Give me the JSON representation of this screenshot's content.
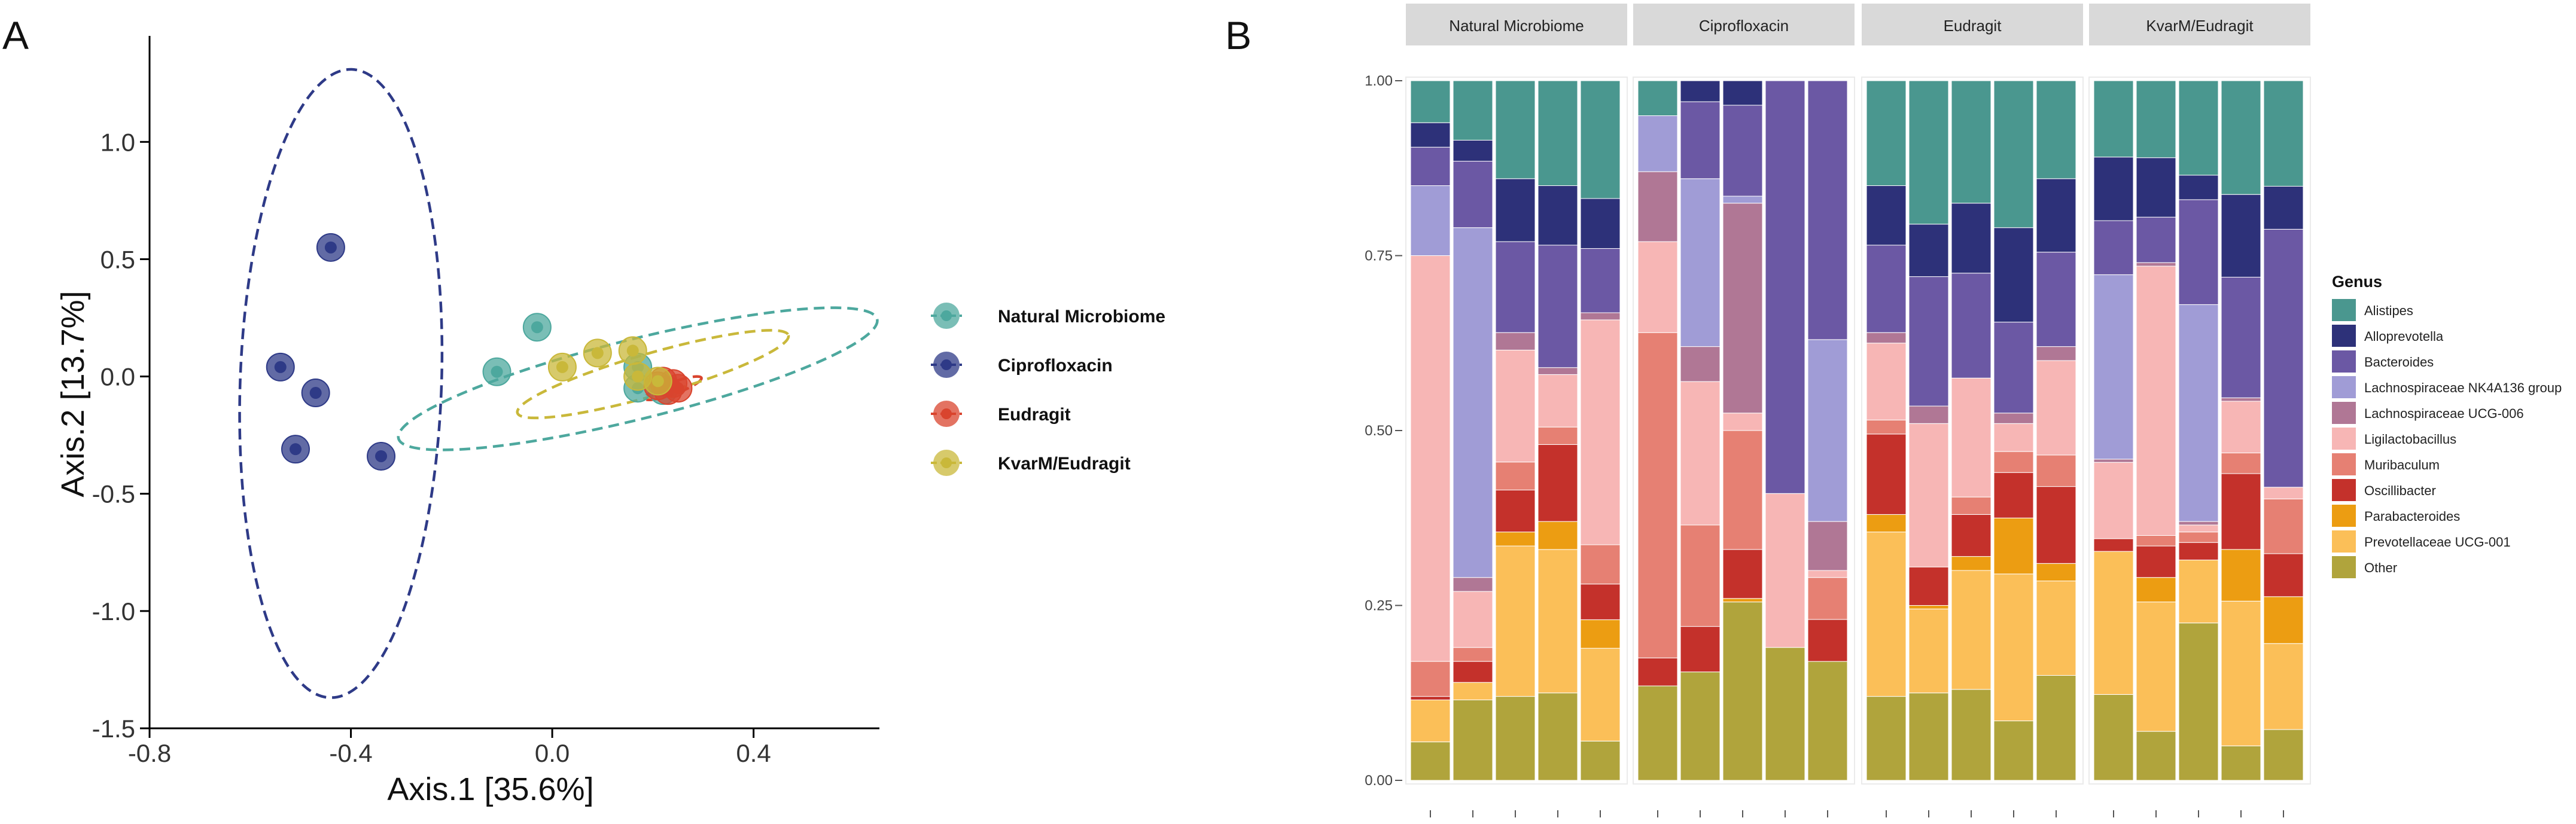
{
  "panel_letters": {
    "a": "A",
    "b": "B"
  },
  "chart_data": [
    {
      "type": "scatter",
      "panel": "A",
      "title": "",
      "xlabel": "Axis.1   [35.6%]",
      "ylabel": "Axis.2   [13.7%]",
      "xlim": [
        -0.8,
        0.65
      ],
      "ylim": [
        -1.5,
        1.35
      ],
      "x_ticks": [
        -0.8,
        -0.4,
        0,
        0.4
      ],
      "x_tick_labels": [
        "-0.8",
        "-0.4",
        "0.0",
        "0.4"
      ],
      "y_ticks": [
        1.0,
        0.5,
        0.0,
        -0.5,
        -1.0,
        -1.5
      ],
      "y_tick_labels": [
        "1.0",
        "0.5",
        "0.0",
        "-0.5",
        "-1.0",
        "-1.5"
      ],
      "grid": false,
      "legend_position": "right",
      "series": [
        {
          "name": "Natural Microbiome",
          "color": "#4da89e",
          "points": [
            [
              -0.11,
              0.02
            ],
            [
              -0.03,
              0.21
            ],
            [
              0.17,
              0.04
            ],
            [
              0.17,
              -0.05
            ],
            [
              0.22,
              -0.06
            ]
          ],
          "ellipse": {
            "cx": 0.17,
            "cy": -0.01,
            "rx": 0.49,
            "ry": 0.17,
            "angle_deg": -14
          }
        },
        {
          "name": "Ciprofloxacin",
          "color": "#2e3a87",
          "points": [
            [
              -0.44,
              0.55
            ],
            [
              -0.54,
              0.04
            ],
            [
              -0.47,
              -0.07
            ],
            [
              -0.51,
              -0.31
            ],
            [
              -0.34,
              -0.34
            ]
          ],
          "ellipse": {
            "cx": -0.42,
            "cy": -0.03,
            "rx": 0.2,
            "ry": 1.34,
            "angle_deg": 2
          }
        },
        {
          "name": "Eudragit",
          "color": "#d9442e",
          "points": [
            [
              0.22,
              -0.02
            ],
            [
              0.24,
              -0.03
            ],
            [
              0.25,
              -0.05
            ],
            [
              0.21,
              -0.04
            ],
            [
              0.23,
              -0.06
            ]
          ],
          "ellipse": {
            "cx": 0.24,
            "cy": -0.05,
            "rx": 0.06,
            "ry": 0.025,
            "angle_deg": -20
          }
        },
        {
          "name": "KvarM/Eudragit",
          "color": "#c9b83a",
          "points": [
            [
              0.02,
              0.04
            ],
            [
              0.09,
              0.1
            ],
            [
              0.16,
              0.11
            ],
            [
              0.17,
              0.0
            ],
            [
              0.21,
              -0.02
            ]
          ],
          "ellipse": {
            "cx": 0.2,
            "cy": 0.01,
            "rx": 0.28,
            "ry": 0.09,
            "angle_deg": -16
          }
        }
      ]
    },
    {
      "type": "bar",
      "stacked": true,
      "panel": "B",
      "title": "",
      "xlabel": "",
      "ylabel": "",
      "ylim": [
        0,
        1
      ],
      "y_ticks": [
        0,
        0.25,
        0.5,
        0.75,
        1.0
      ],
      "y_tick_labels": [
        "0.00",
        "0.25",
        "0.50",
        "0.75",
        "1.00"
      ],
      "legend_title": "Genus",
      "legend_position": "right",
      "genera": [
        "Alistipes",
        "Alloprevotella",
        "Bacteroides",
        "Lachnospiraceae NK4A136 group",
        "Lachnospiraceae UCG-006",
        "Ligilactobacillus",
        "Muribaculum",
        "Oscillibacter",
        "Parabacteroides",
        "Prevotellaceae UCG-001",
        "Other"
      ],
      "colors": [
        "#4a978f",
        "#2d3179",
        "#6b58a4",
        "#a09cd6",
        "#b07795",
        "#f7b6b5",
        "#e68073",
        "#c4312b",
        "#ec9d12",
        "#fbbf58",
        "#b0a43c"
      ],
      "facets": [
        {
          "name": "Natural Microbiome",
          "samples": [
            {
              "values": [
                0.06,
                0.035,
                0.055,
                0.1,
                0,
                0.58,
                0.05,
                0.005,
                0,
                0.06,
                0.055
              ]
            },
            {
              "values": [
                0.085,
                0.03,
                0.095,
                0.5,
                0.02,
                0.08,
                0.02,
                0.03,
                0,
                0.025,
                0.115
              ]
            },
            {
              "values": [
                0.14,
                0.09,
                0.13,
                0,
                0.025,
                0.16,
                0.04,
                0.06,
                0.02,
                0.215,
                0.12
              ]
            },
            {
              "values": [
                0.15,
                0.085,
                0.175,
                0,
                0.01,
                0.075,
                0.025,
                0.11,
                0.04,
                0.205,
                0.125
              ]
            },
            {
              "values": [
                0.165,
                0.07,
                0.09,
                0,
                0.01,
                0.315,
                0.055,
                0.05,
                0.04,
                0.13,
                0.055
              ]
            }
          ]
        },
        {
          "name": "Ciprofloxacin",
          "samples": [
            {
              "values": [
                0.05,
                0,
                0,
                0.08,
                0.1,
                0.13,
                0.465,
                0.04,
                0,
                0,
                0.135
              ]
            },
            {
              "values": [
                0,
                0.03,
                0.11,
                0.24,
                0.05,
                0.205,
                0.145,
                0.065,
                0,
                0,
                0.155
              ]
            },
            {
              "values": [
                0,
                0.035,
                0.13,
                0.01,
                0.3,
                0.025,
                0.17,
                0.07,
                0.005,
                0,
                0.255
              ]
            },
            {
              "values": [
                0,
                0,
                0.59,
                0,
                0,
                0.22,
                0,
                0,
                0,
                0,
                0.19
              ]
            },
            {
              "values": [
                0,
                0,
                0.37,
                0.26,
                0.07,
                0.01,
                0.06,
                0.06,
                0,
                0,
                0.17
              ]
            }
          ]
        },
        {
          "name": "Eudragit",
          "samples": [
            {
              "values": [
                0.15,
                0.085,
                0.125,
                0,
                0.015,
                0.11,
                0.02,
                0.115,
                0.025,
                0.235,
                0.12
              ]
            },
            {
              "values": [
                0.205,
                0.075,
                0.185,
                0,
                0.025,
                0.205,
                0,
                0.055,
                0.005,
                0.12,
                0.125
              ]
            },
            {
              "values": [
                0.175,
                0.1,
                0.15,
                0,
                0,
                0.17,
                0.025,
                0.06,
                0.02,
                0.17,
                0.13
              ]
            },
            {
              "values": [
                0.21,
                0.135,
                0.13,
                0,
                0.015,
                0.04,
                0.03,
                0.065,
                0.08,
                0.21,
                0.085
              ]
            },
            {
              "values": [
                0.14,
                0.105,
                0.135,
                0,
                0.02,
                0.135,
                0.045,
                0.11,
                0.025,
                0.135,
                0.15
              ]
            }
          ]
        },
        {
          "name": "KvarM/Eudragit",
          "samples": [
            {
              "values": [
                0.12,
                0.1,
                0.085,
                0.29,
                0.005,
                0.12,
                0,
                0.02,
                0,
                0.225,
                0.135
              ]
            },
            {
              "values": [
                0.11,
                0.085,
                0.065,
                0,
                0.005,
                0.385,
                0.015,
                0.045,
                0.035,
                0.185,
                0.07
              ]
            },
            {
              "values": [
                0.135,
                0.035,
                0.15,
                0.31,
                0.005,
                0.01,
                0.015,
                0.025,
                0,
                0.09,
                0.225
              ]
            },
            {
              "values": [
                0.165,
                0.12,
                0.175,
                0,
                0.005,
                0.075,
                0.03,
                0.11,
                0.075,
                0.21,
                0.05
              ]
            },
            {
              "values": [
                0.135,
                0.055,
                0.33,
                0,
                0,
                0.015,
                0.07,
                0.055,
                0.06,
                0.11,
                0.065
              ]
            }
          ]
        }
      ]
    }
  ]
}
